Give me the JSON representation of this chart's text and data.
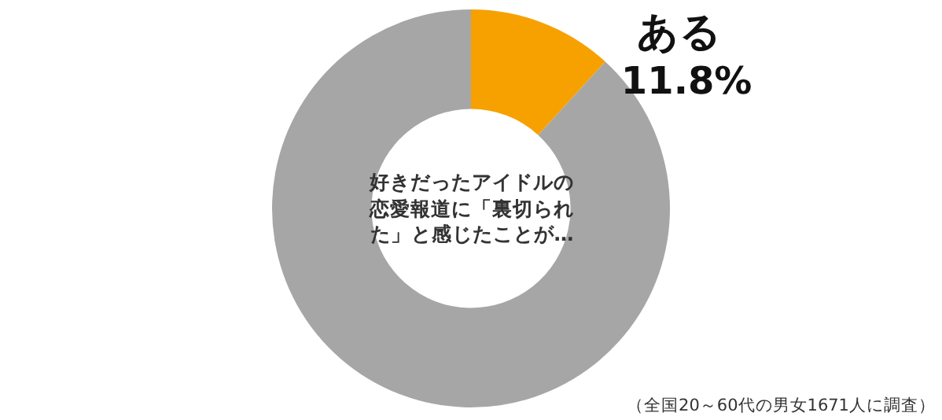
{
  "chart_data": {
    "type": "donut",
    "title": "好きだったアイドルの恋愛報道に「裏切られた」と感じたことが…",
    "categories": [
      "ある",
      null
    ],
    "values": [
      11.8,
      88.2
    ],
    "colors": [
      "#f7a100",
      "#a6a6a6"
    ],
    "value_labels": [
      "11.8%",
      null
    ],
    "legend": false,
    "annotations": [
      "（全国20～60代の男女1671人に調査）"
    ]
  }
}
